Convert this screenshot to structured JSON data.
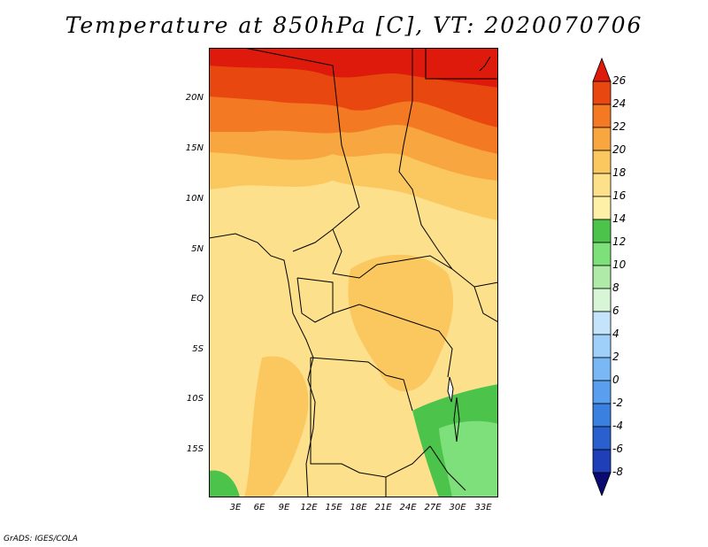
{
  "title": "Temperature at 850hPa [C], VT: 2020070706",
  "credit": "GrADS: IGES/COLA",
  "lat_labels": [
    "20N",
    "15N",
    "10N",
    "5N",
    "EQ",
    "5S",
    "10S",
    "15S"
  ],
  "lon_labels": [
    "3E",
    "6E",
    "9E",
    "12E",
    "15E",
    "18E",
    "21E",
    "24E",
    "27E",
    "30E",
    "33E"
  ],
  "colorbar": {
    "levels": [
      "-8",
      "-6",
      "-4",
      "-2",
      "0",
      "2",
      "4",
      "6",
      "8",
      "10",
      "12",
      "14",
      "16",
      "18",
      "20",
      "22",
      "24",
      "26"
    ],
    "colors": [
      "#0a0a70",
      "#1f3fb8",
      "#2a5fd0",
      "#3a80e0",
      "#5a9ef0",
      "#7ab8f5",
      "#9fd0fa",
      "#c4e4fb",
      "#d8f5d8",
      "#b0eaa8",
      "#7ee07a",
      "#4cc44c",
      "#fff0a8",
      "#fde08a",
      "#fbc860",
      "#f7a640",
      "#f37a22",
      "#e84810",
      "#dd1a0c"
    ]
  }
}
